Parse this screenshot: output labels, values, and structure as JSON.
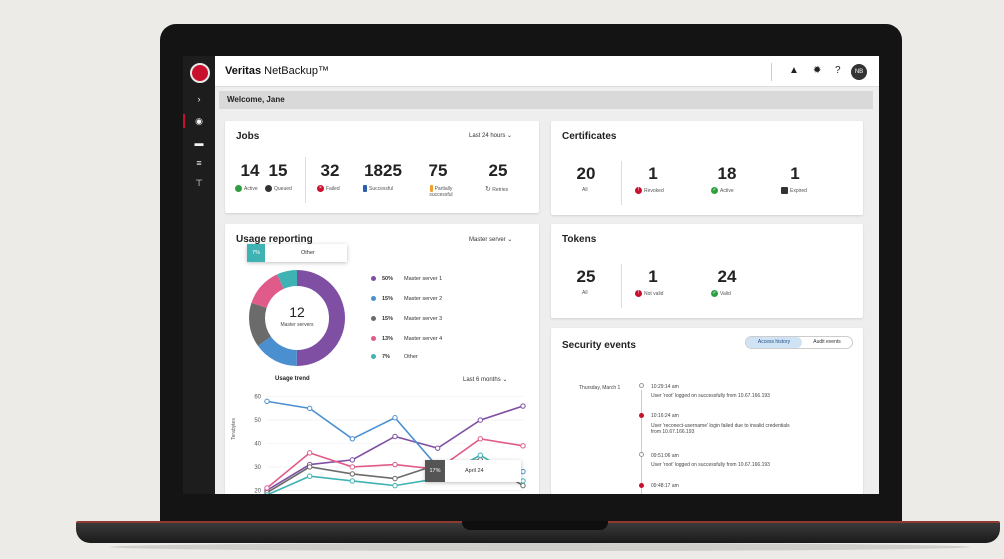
{
  "app": {
    "brand_bold": "Veritas",
    "brand_rest": " NetBackup™",
    "avatar_initials": "NB"
  },
  "welcome": "Welcome, Jane",
  "jobs": {
    "title": "Jobs",
    "range": "Last 24 hours",
    "stats": [
      {
        "value": "14",
        "label": "Active"
      },
      {
        "value": "15",
        "label": "Queued"
      },
      {
        "value": "32",
        "label": "Failed"
      },
      {
        "value": "1825",
        "label": "Successful"
      },
      {
        "value": "75",
        "label": "Partially successful"
      },
      {
        "value": "25",
        "label": "Retries"
      }
    ]
  },
  "certificates": {
    "title": "Certificates",
    "stats": [
      {
        "value": "20",
        "label": "All"
      },
      {
        "value": "1",
        "label": "Revoked"
      },
      {
        "value": "18",
        "label": "Active"
      },
      {
        "value": "1",
        "label": "Expired"
      }
    ]
  },
  "tokens": {
    "title": "Tokens",
    "stats": [
      {
        "value": "25",
        "label": "All"
      },
      {
        "value": "1",
        "label": "Not valid"
      },
      {
        "value": "24",
        "label": "Valid"
      }
    ]
  },
  "usage": {
    "title": "Usage reporting",
    "filter": "Master server",
    "donut_value": "12",
    "donut_label": "Master servers",
    "tooltip_pct": "7%",
    "tooltip_label": "Other",
    "legend": [
      {
        "pct": "50%",
        "name": "Master server 1",
        "color": "#7e4fa3"
      },
      {
        "pct": "15%",
        "name": "Master server 2",
        "color": "#4a90d0"
      },
      {
        "pct": "15%",
        "name": "Master server 3",
        "color": "#6b6b6b"
      },
      {
        "pct": "13%",
        "name": "Master server 4",
        "color": "#e05a8a"
      },
      {
        "pct": "7%",
        "name": "Other",
        "color": "#3fb3b3"
      }
    ],
    "trend_title": "Usage trend",
    "trend_range": "Last 6 months",
    "ylabel": "Terabytes",
    "chart_tooltip_value": "17%",
    "chart_tooltip_date": "April 24"
  },
  "chart_data": {
    "type": "line",
    "ylim": [
      15,
      62
    ],
    "yticks": [
      "60",
      "50",
      "40",
      "30",
      "20"
    ],
    "x": [
      1,
      2,
      3,
      4,
      5,
      6,
      7
    ],
    "series": [
      {
        "name": "Master server 1",
        "color": "#7e4fa3",
        "values": [
          20,
          31,
          33,
          43,
          38,
          50,
          56
        ]
      },
      {
        "name": "Master server 2",
        "color": "#4a90d0",
        "values": [
          58,
          55,
          42,
          51,
          30,
          25,
          28
        ]
      },
      {
        "name": "Master server 3",
        "color": "#6b6b6b",
        "values": [
          19,
          30,
          27,
          25,
          31,
          33,
          22
        ]
      },
      {
        "name": "Master server 4",
        "color": "#e05a8a",
        "values": [
          21,
          36,
          30,
          31,
          29,
          42,
          39
        ]
      },
      {
        "name": "Other",
        "color": "#3fb3b3",
        "values": [
          18,
          26,
          24,
          22,
          25,
          35,
          24
        ]
      }
    ]
  },
  "security": {
    "title": "Security events",
    "tabs": [
      "Access history",
      "Audit events"
    ],
    "date": "Thursday, March 1",
    "events": [
      {
        "time": "10:29:14 am",
        "text": "User 'root' logged on successfully from 10.67.166.193",
        "error": false
      },
      {
        "time": "10:16:24 am",
        "text": "User 'reconect-username' login failed due to invalid credentials",
        "text2": "from 10.67.166.193",
        "error": true
      },
      {
        "time": "09:51:06 am",
        "text": "User 'root' logged on successfully from 10.67.166.193",
        "error": false
      },
      {
        "time": "09:48:17 am",
        "text": "",
        "error": true
      }
    ]
  },
  "colors": {
    "accent": "#c8102e",
    "success": "#2e9e3e"
  }
}
